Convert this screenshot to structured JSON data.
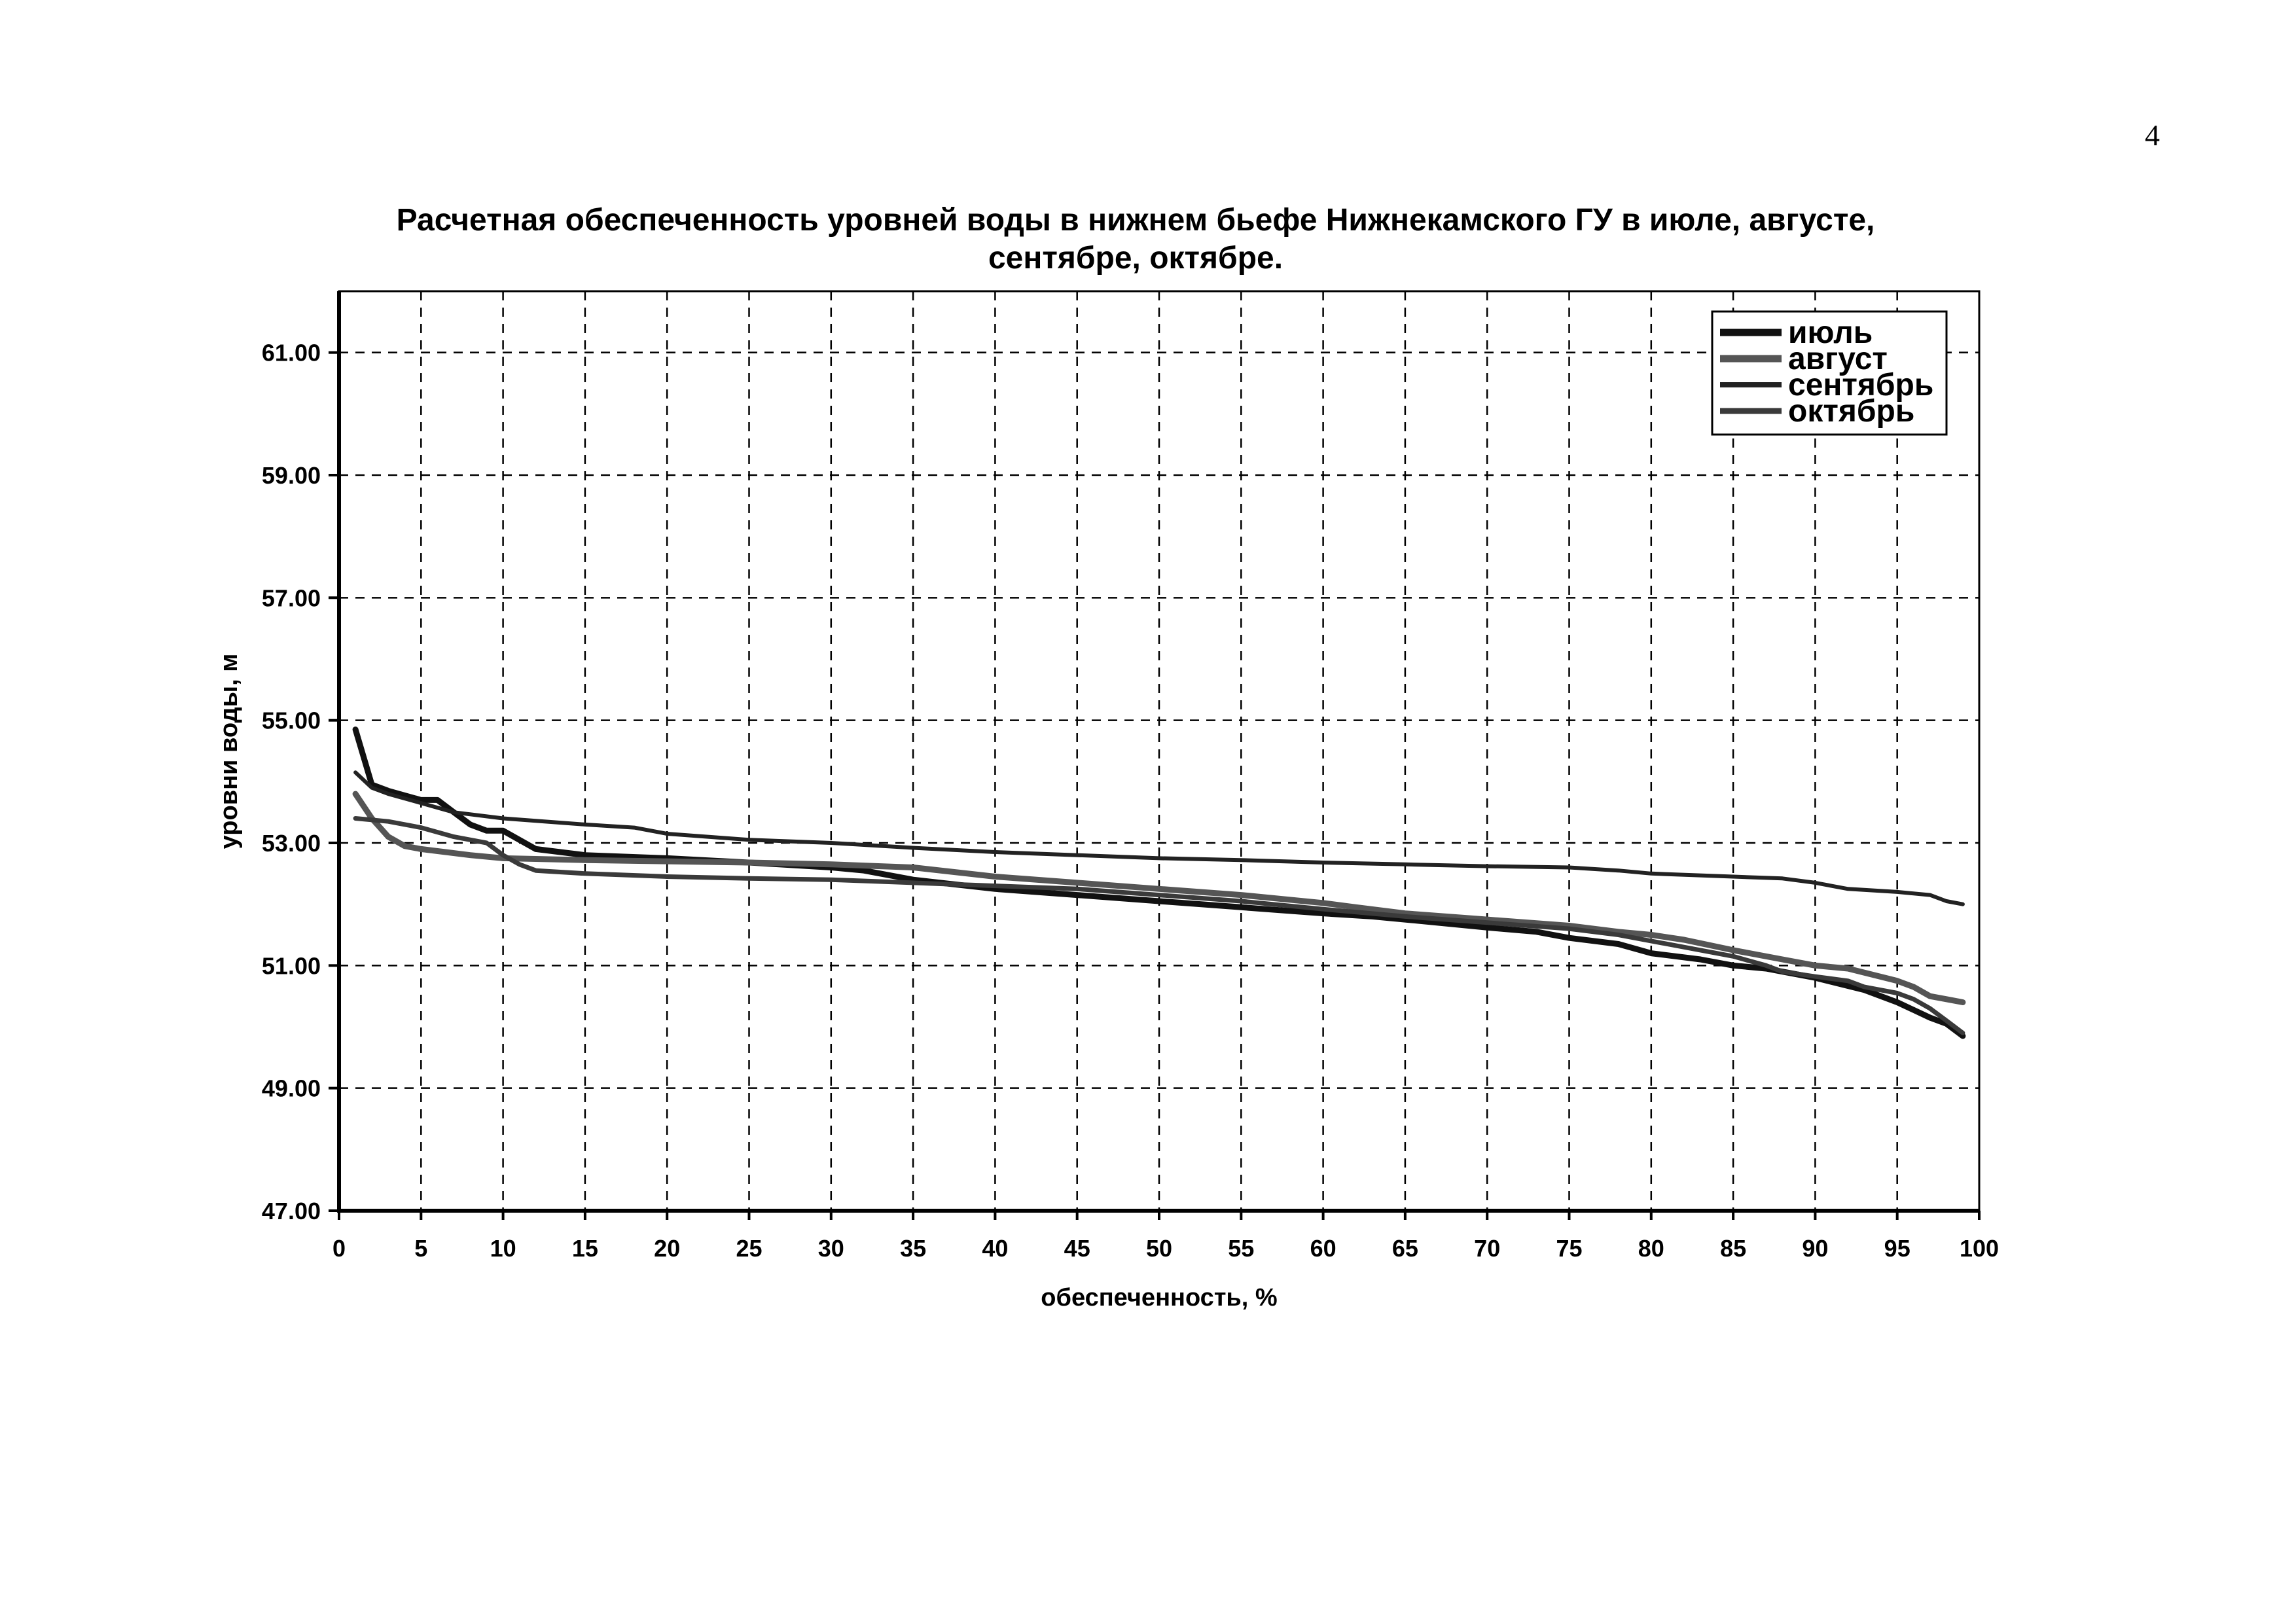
{
  "page": {
    "number": "4"
  },
  "chart_data": {
    "type": "line",
    "title_lines": [
      "Расчетная обеспеченность уровней воды в нижнем бьефе Нижнекамского ГУ в июле, августе,",
      "сентябре, октябре."
    ],
    "xlabel": "обеспеченность, %",
    "ylabel": "уровни воды, м",
    "xlim": [
      0,
      100
    ],
    "ylim": [
      47.0,
      62.0
    ],
    "x_ticks": [
      "0",
      "5",
      "10",
      "15",
      "20",
      "25",
      "30",
      "35",
      "40",
      "45",
      "50",
      "55",
      "60",
      "65",
      "70",
      "75",
      "80",
      "85",
      "90",
      "95",
      "100"
    ],
    "y_ticks": [
      "47.00",
      "49.00",
      "51.00",
      "53.00",
      "55.00",
      "57.00",
      "59.00",
      "61.00"
    ],
    "grid": true,
    "legend_position": "top-right",
    "series": [
      {
        "name": "июль",
        "color": "#111111",
        "width": 9,
        "points": [
          [
            1,
            54.85
          ],
          [
            2,
            53.95
          ],
          [
            3,
            53.85
          ],
          [
            5,
            53.7
          ],
          [
            6,
            53.7
          ],
          [
            7,
            53.5
          ],
          [
            8,
            53.3
          ],
          [
            9,
            53.2
          ],
          [
            10,
            53.2
          ],
          [
            12,
            52.9
          ],
          [
            15,
            52.8
          ],
          [
            20,
            52.75
          ],
          [
            25,
            52.68
          ],
          [
            30,
            52.6
          ],
          [
            32,
            52.55
          ],
          [
            35,
            52.4
          ],
          [
            40,
            52.25
          ],
          [
            45,
            52.15
          ],
          [
            50,
            52.05
          ],
          [
            55,
            51.95
          ],
          [
            60,
            51.85
          ],
          [
            63,
            51.8
          ],
          [
            65,
            51.75
          ],
          [
            70,
            51.62
          ],
          [
            73,
            51.55
          ],
          [
            75,
            51.45
          ],
          [
            78,
            51.35
          ],
          [
            80,
            51.2
          ],
          [
            83,
            51.1
          ],
          [
            85,
            51.0
          ],
          [
            87,
            50.95
          ],
          [
            88,
            50.9
          ],
          [
            90,
            50.8
          ],
          [
            93,
            50.6
          ],
          [
            95,
            50.4
          ],
          [
            97,
            50.15
          ],
          [
            98,
            50.05
          ],
          [
            99,
            49.85
          ]
        ]
      },
      {
        "name": "август",
        "color": "#555555",
        "width": 9,
        "points": [
          [
            1,
            53.8
          ],
          [
            2,
            53.4
          ],
          [
            3,
            53.1
          ],
          [
            4,
            52.95
          ],
          [
            5,
            52.9
          ],
          [
            8,
            52.8
          ],
          [
            10,
            52.75
          ],
          [
            15,
            52.72
          ],
          [
            20,
            52.7
          ],
          [
            25,
            52.68
          ],
          [
            30,
            52.65
          ],
          [
            33,
            52.62
          ],
          [
            35,
            52.6
          ],
          [
            40,
            52.45
          ],
          [
            45,
            52.35
          ],
          [
            50,
            52.25
          ],
          [
            55,
            52.15
          ],
          [
            60,
            52.02
          ],
          [
            62,
            51.95
          ],
          [
            65,
            51.85
          ],
          [
            70,
            51.75
          ],
          [
            75,
            51.65
          ],
          [
            78,
            51.55
          ],
          [
            80,
            51.5
          ],
          [
            82,
            51.42
          ],
          [
            85,
            51.25
          ],
          [
            88,
            51.1
          ],
          [
            90,
            51.0
          ],
          [
            92,
            50.95
          ],
          [
            95,
            50.75
          ],
          [
            96,
            50.65
          ],
          [
            97,
            50.5
          ],
          [
            98,
            50.45
          ],
          [
            99,
            50.4
          ]
        ]
      },
      {
        "name": "сентябрь",
        "color": "#222222",
        "width": 6,
        "points": [
          [
            1,
            54.15
          ],
          [
            2,
            53.9
          ],
          [
            3,
            53.8
          ],
          [
            5,
            53.65
          ],
          [
            7,
            53.5
          ],
          [
            10,
            53.4
          ],
          [
            15,
            53.3
          ],
          [
            18,
            53.25
          ],
          [
            20,
            53.15
          ],
          [
            25,
            53.05
          ],
          [
            30,
            53.0
          ],
          [
            35,
            52.92
          ],
          [
            40,
            52.85
          ],
          [
            45,
            52.8
          ],
          [
            50,
            52.75
          ],
          [
            55,
            52.72
          ],
          [
            60,
            52.68
          ],
          [
            65,
            52.65
          ],
          [
            70,
            52.62
          ],
          [
            75,
            52.6
          ],
          [
            78,
            52.55
          ],
          [
            80,
            52.5
          ],
          [
            85,
            52.45
          ],
          [
            88,
            52.42
          ],
          [
            90,
            52.35
          ],
          [
            92,
            52.25
          ],
          [
            95,
            52.2
          ],
          [
            97,
            52.15
          ],
          [
            98,
            52.05
          ],
          [
            99,
            52.0
          ]
        ]
      },
      {
        "name": "октябрь",
        "color": "#3a3a3a",
        "width": 7,
        "points": [
          [
            1,
            53.4
          ],
          [
            3,
            53.35
          ],
          [
            5,
            53.25
          ],
          [
            7,
            53.1
          ],
          [
            9,
            53.0
          ],
          [
            10,
            52.8
          ],
          [
            11,
            52.65
          ],
          [
            12,
            52.55
          ],
          [
            15,
            52.5
          ],
          [
            20,
            52.45
          ],
          [
            25,
            52.42
          ],
          [
            30,
            52.4
          ],
          [
            35,
            52.35
          ],
          [
            40,
            52.3
          ],
          [
            45,
            52.25
          ],
          [
            50,
            52.15
          ],
          [
            55,
            52.05
          ],
          [
            60,
            51.92
          ],
          [
            65,
            51.8
          ],
          [
            70,
            51.7
          ],
          [
            75,
            51.6
          ],
          [
            78,
            51.5
          ],
          [
            80,
            51.4
          ],
          [
            83,
            51.25
          ],
          [
            85,
            51.15
          ],
          [
            87,
            51.0
          ],
          [
            88,
            50.9
          ],
          [
            90,
            50.82
          ],
          [
            92,
            50.75
          ],
          [
            93,
            50.65
          ],
          [
            95,
            50.55
          ],
          [
            96,
            50.45
          ],
          [
            97,
            50.3
          ],
          [
            98,
            50.1
          ],
          [
            99,
            49.9
          ]
        ]
      }
    ]
  }
}
